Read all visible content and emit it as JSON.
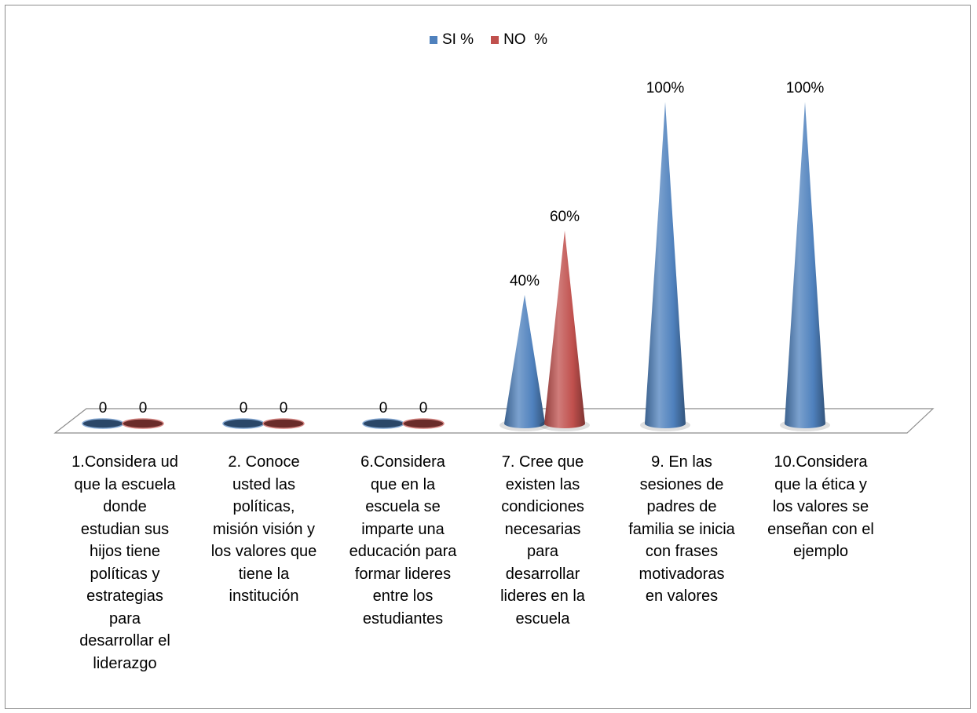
{
  "chart_data": {
    "type": "bar",
    "title": "",
    "xlabel": "",
    "ylabel": "",
    "ylim": [
      0,
      100
    ],
    "categories": [
      "1.Considera ud que la escuela donde estudian sus hijos tiene políticas y estrategias para desarrollar el liderazgo",
      "2. Conoce usted las políticas, misión visión y los valores que tiene  la institución",
      "6.Considera que en la escuela se imparte una educación para formar lideres entre los estudiantes",
      "7. Cree que existen las condiciones necesarias para desarrollar lideres en la escuela",
      "9. En las sesiones de padres de familia se inicia con frases motivadoras en valores",
      "10.Considera que la ética y los valores se enseñan con el ejemplo"
    ],
    "category_lines": [
      "1.Considera ud\nque la escuela\ndonde\nestudian sus\nhijos tiene\npolíticas y\nestrategias\npara\ndesarrollar el\nliderazgo",
      "2. Conoce\nusted las\npolíticas,\nmisión visión y\nlos valores que\ntiene  la\ninstitución",
      "6.Considera\nque en la\nescuela se\nimparte una\neducación para\nformar lideres\nentre los\nestudiantes",
      "7. Cree que\nexisten las\ncondiciones\nnecesarias\npara\ndesarrollar\nlideres en la\nescuela",
      "9. En las\nsesiones de\npadres de\nfamilia se inicia\ncon frases\nmotivadoras\nen valores",
      "10.Considera\nque la ética y\nlos valores se\nenseñan con el\nejemplo"
    ],
    "series": [
      {
        "name": "SI %",
        "color": "#4F81BD",
        "values": [
          0,
          0,
          0,
          40,
          100,
          100
        ],
        "labels": [
          "0",
          "0",
          "0",
          "40%",
          "100%",
          "100%"
        ]
      },
      {
        "name": "NO  %",
        "color": "#C0504D",
        "values": [
          0,
          0,
          0,
          60,
          null,
          null
        ],
        "labels": [
          "0",
          "0",
          "0",
          "60%",
          "",
          ""
        ]
      }
    ],
    "legend_position": "top",
    "grid": false,
    "style": "3d-cone"
  }
}
